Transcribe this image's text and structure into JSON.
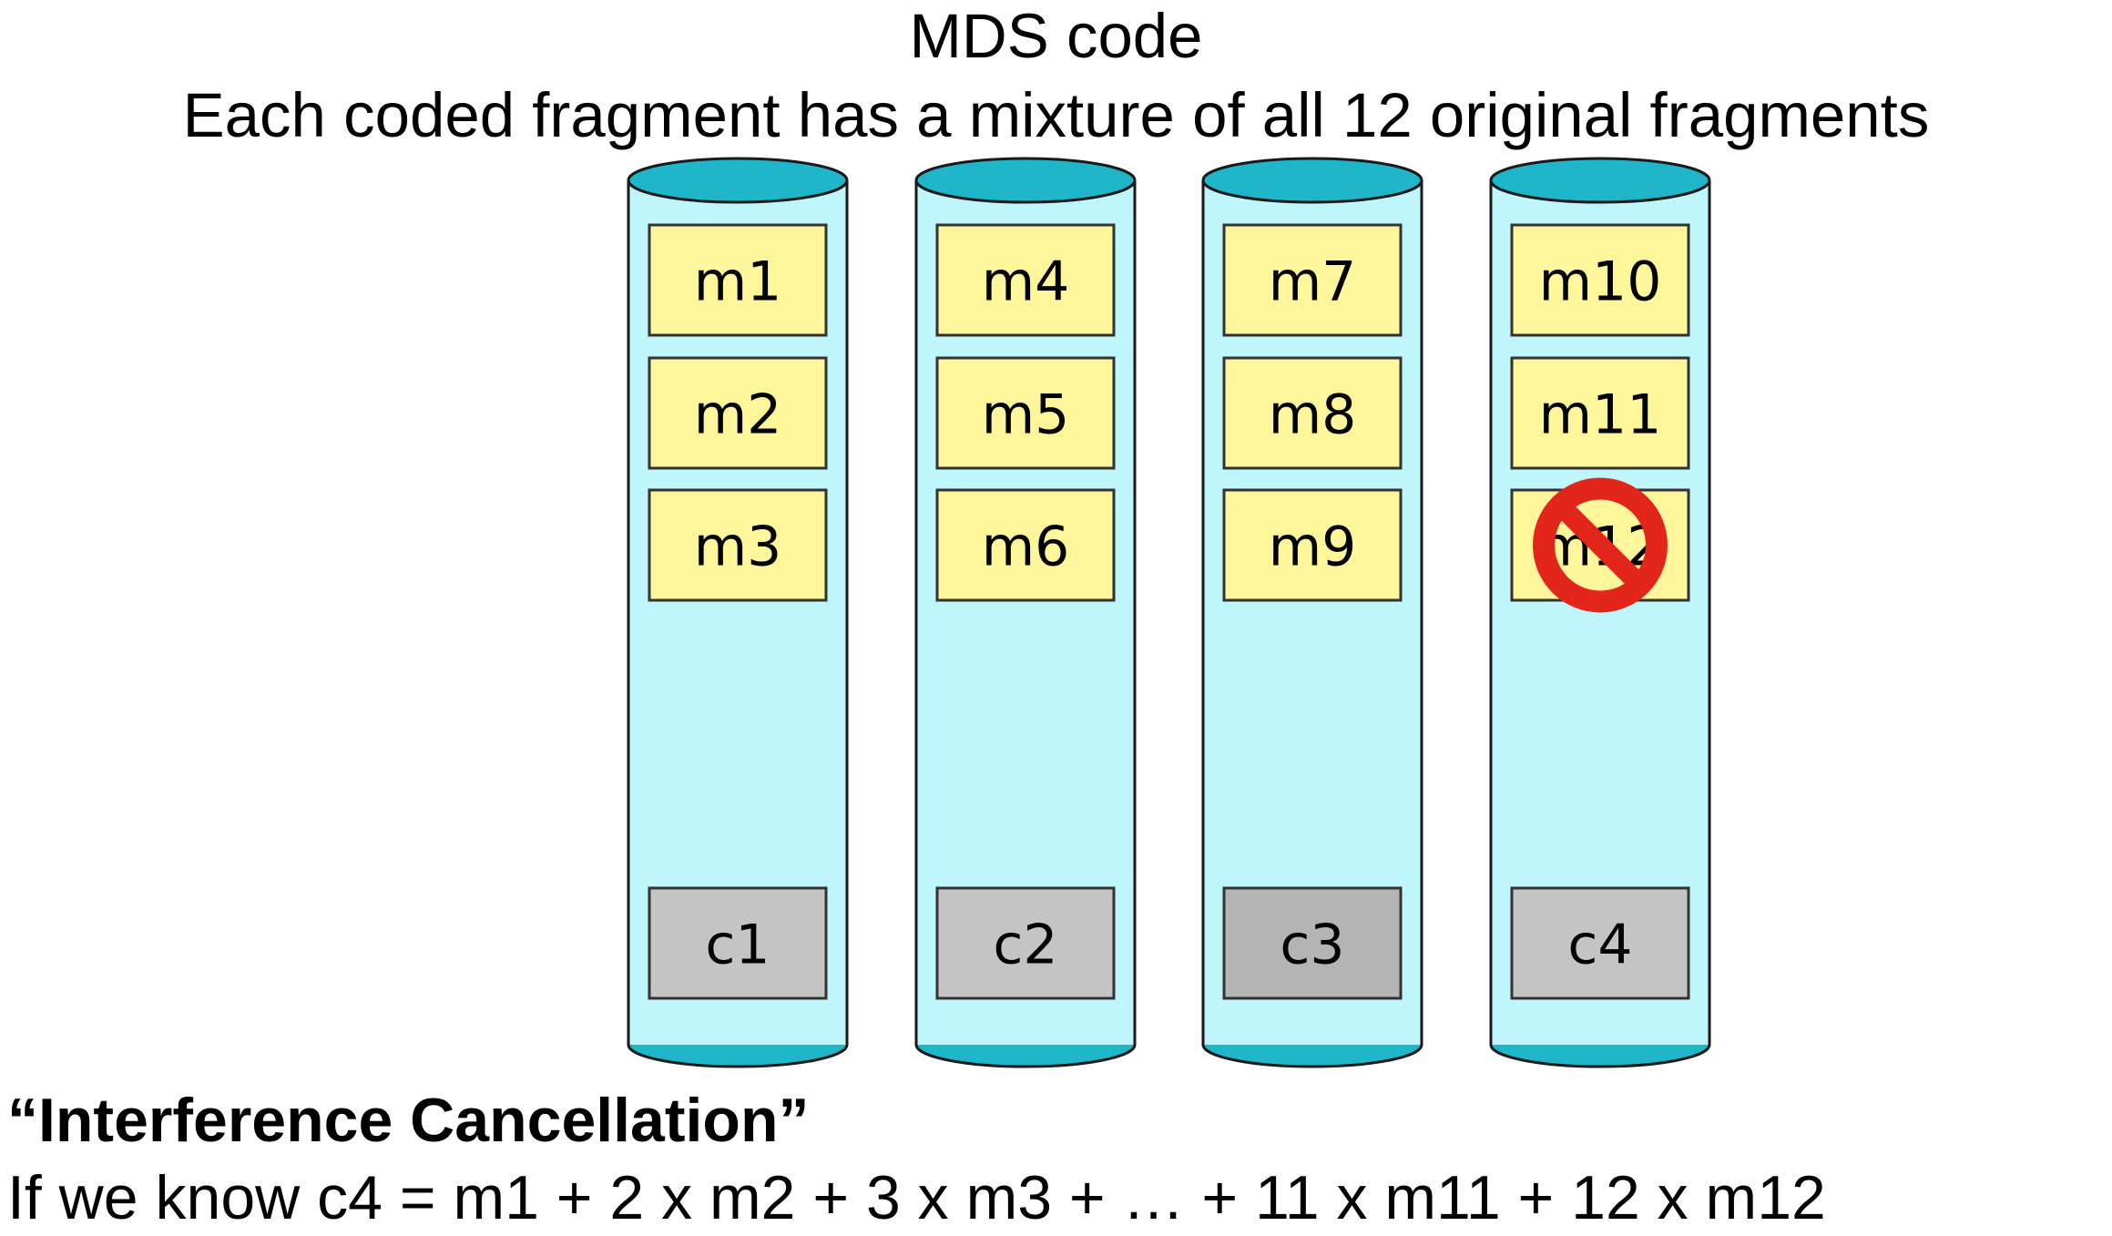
{
  "title": "MDS code",
  "subtitle": "Each coded fragment has a mixture of all 12 original fragments",
  "heading": "“Interference Cancellation”",
  "equation": "If we know c4 = m1 + 2 x m2 + 3 x m3 + … + 11 x m11 + 12 x m12",
  "colors": {
    "cylinder_body": "#bff6fc",
    "cylinder_cap": "#1fb6c9",
    "outline": "#1a1a1a",
    "original_fragment": "#fff59a",
    "coded_fragment": "#c4c4c4",
    "coded_fragment_dark": "#b4b4b4",
    "prohibited_sign": "#e3261b"
  },
  "disks": [
    {
      "original_fragments": [
        "m1",
        "m2",
        "m3"
      ],
      "coded_fragment": "c1",
      "failed_fragment": null
    },
    {
      "original_fragments": [
        "m4",
        "m5",
        "m6"
      ],
      "coded_fragment": "c2",
      "failed_fragment": null
    },
    {
      "original_fragments": [
        "m7",
        "m8",
        "m9"
      ],
      "coded_fragment": "c3",
      "failed_fragment": null
    },
    {
      "original_fragments": [
        "m10",
        "m11",
        "m12"
      ],
      "coded_fragment": "c4",
      "failed_fragment": "m12"
    }
  ],
  "icons": {
    "failed_marker": "prohibited-icon"
  }
}
